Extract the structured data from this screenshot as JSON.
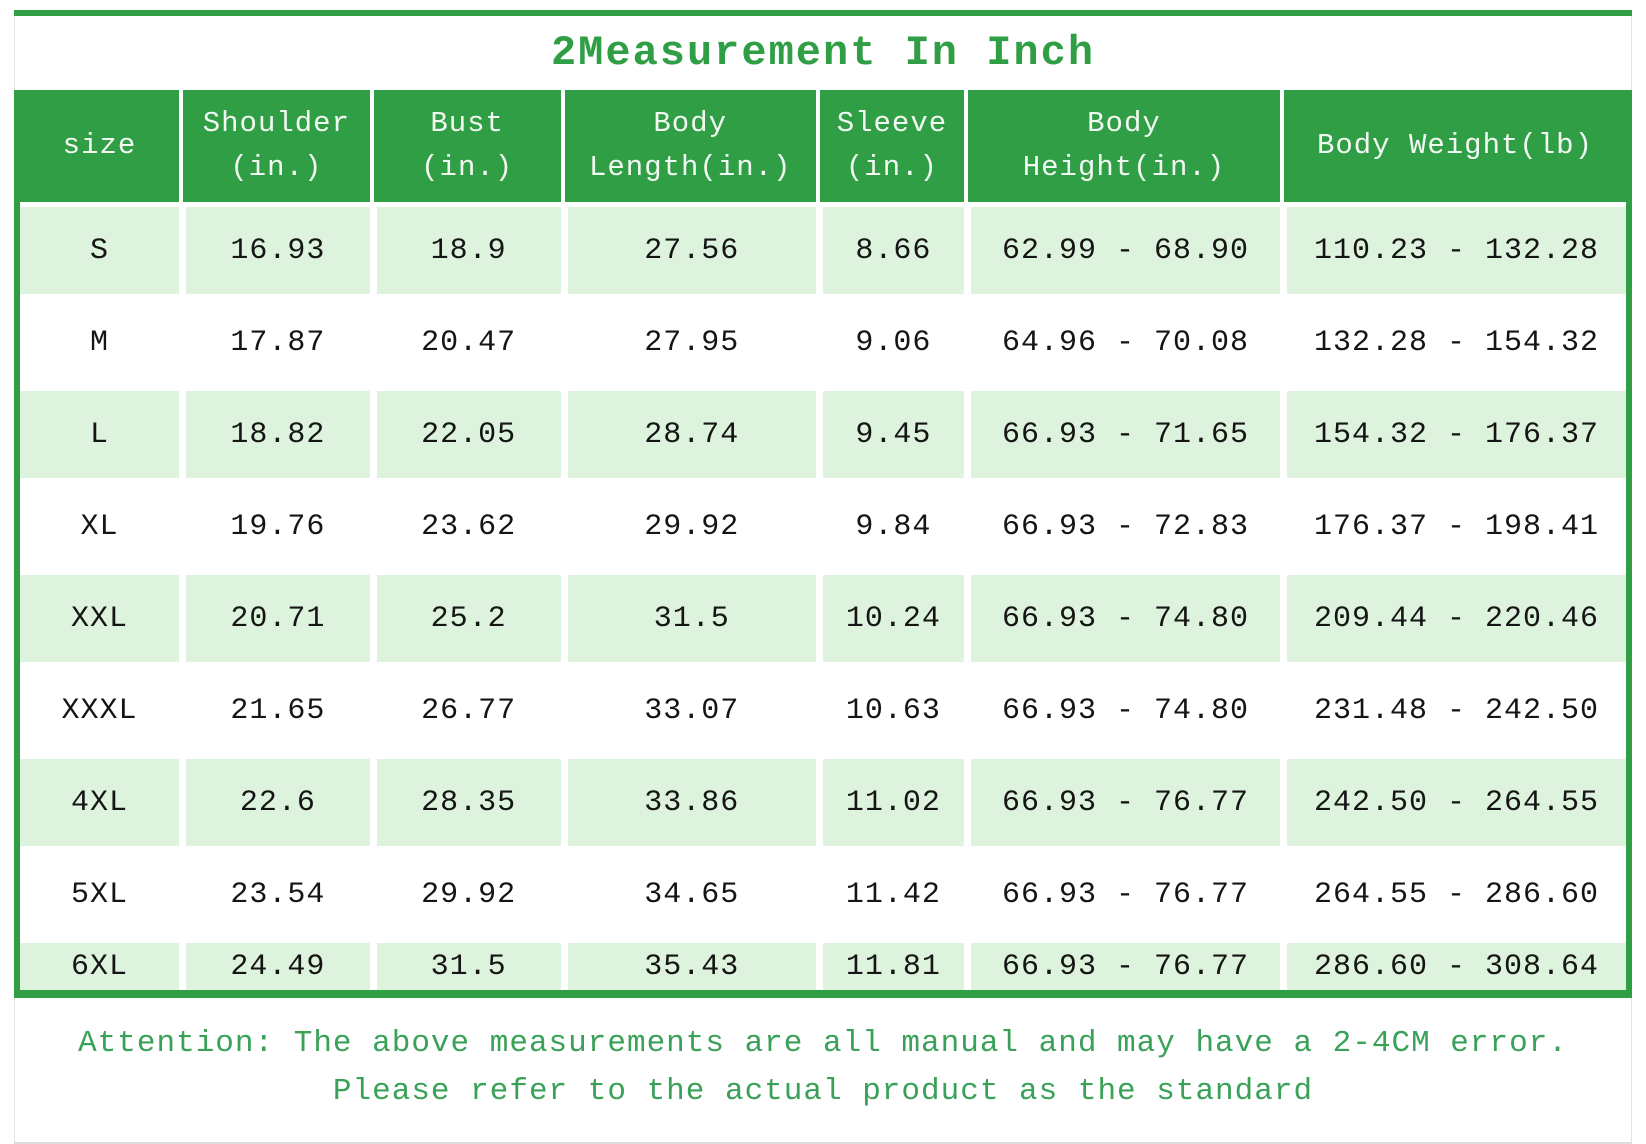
{
  "title": "2Measurement In Inch",
  "colors": {
    "accent_green": "#2f9e44",
    "row_light_green": "#ddf3dd",
    "header_text": "#ffffff",
    "footer_text_green": "#3aa158"
  },
  "chart_data": {
    "type": "table",
    "title": "2Measurement In Inch",
    "columns": [
      {
        "line1": "size",
        "line2": ""
      },
      {
        "line1": "Shoulder",
        "line2": "(in.)"
      },
      {
        "line1": "Bust",
        "line2": "(in.)"
      },
      {
        "line1": "Body",
        "line2": "Length(in.)"
      },
      {
        "line1": "Sleeve",
        "line2": "(in.)"
      },
      {
        "line1": "Body",
        "line2": "Height(in.)"
      },
      {
        "line1": "Body Weight(lb)",
        "line2": ""
      }
    ],
    "rows": [
      [
        "S",
        "16.93",
        "18.9",
        "27.56",
        "8.66",
        "62.99 - 68.90",
        "110.23 - 132.28"
      ],
      [
        "M",
        "17.87",
        "20.47",
        "27.95",
        "9.06",
        "64.96 - 70.08",
        "132.28 - 154.32"
      ],
      [
        "L",
        "18.82",
        "22.05",
        "28.74",
        "9.45",
        "66.93 - 71.65",
        "154.32 - 176.37"
      ],
      [
        "XL",
        "19.76",
        "23.62",
        "29.92",
        "9.84",
        "66.93 - 72.83",
        "176.37 - 198.41"
      ],
      [
        "XXL",
        "20.71",
        "25.2",
        "31.5",
        "10.24",
        "66.93 - 74.80",
        "209.44 - 220.46"
      ],
      [
        "XXXL",
        "21.65",
        "26.77",
        "33.07",
        "10.63",
        "66.93 - 74.80",
        "231.48 - 242.50"
      ],
      [
        "4XL",
        "22.6",
        "28.35",
        "33.86",
        "11.02",
        "66.93 - 76.77",
        "242.50 - 264.55"
      ],
      [
        "5XL",
        "23.54",
        "29.92",
        "34.65",
        "11.42",
        "66.93 - 76.77",
        "264.55 - 286.60"
      ],
      [
        "6XL",
        "24.49",
        "31.5",
        "35.43",
        "11.81",
        "66.93 - 76.77",
        "286.60 - 308.64"
      ]
    ],
    "layout": {
      "grid": "off",
      "stripe_pattern": "alternating light-green starting at row S"
    }
  },
  "footer": {
    "line1": "Attention: The above measurements are all manual and may have a 2-4CM error.",
    "line2": "Please refer to the actual product as the standard"
  }
}
